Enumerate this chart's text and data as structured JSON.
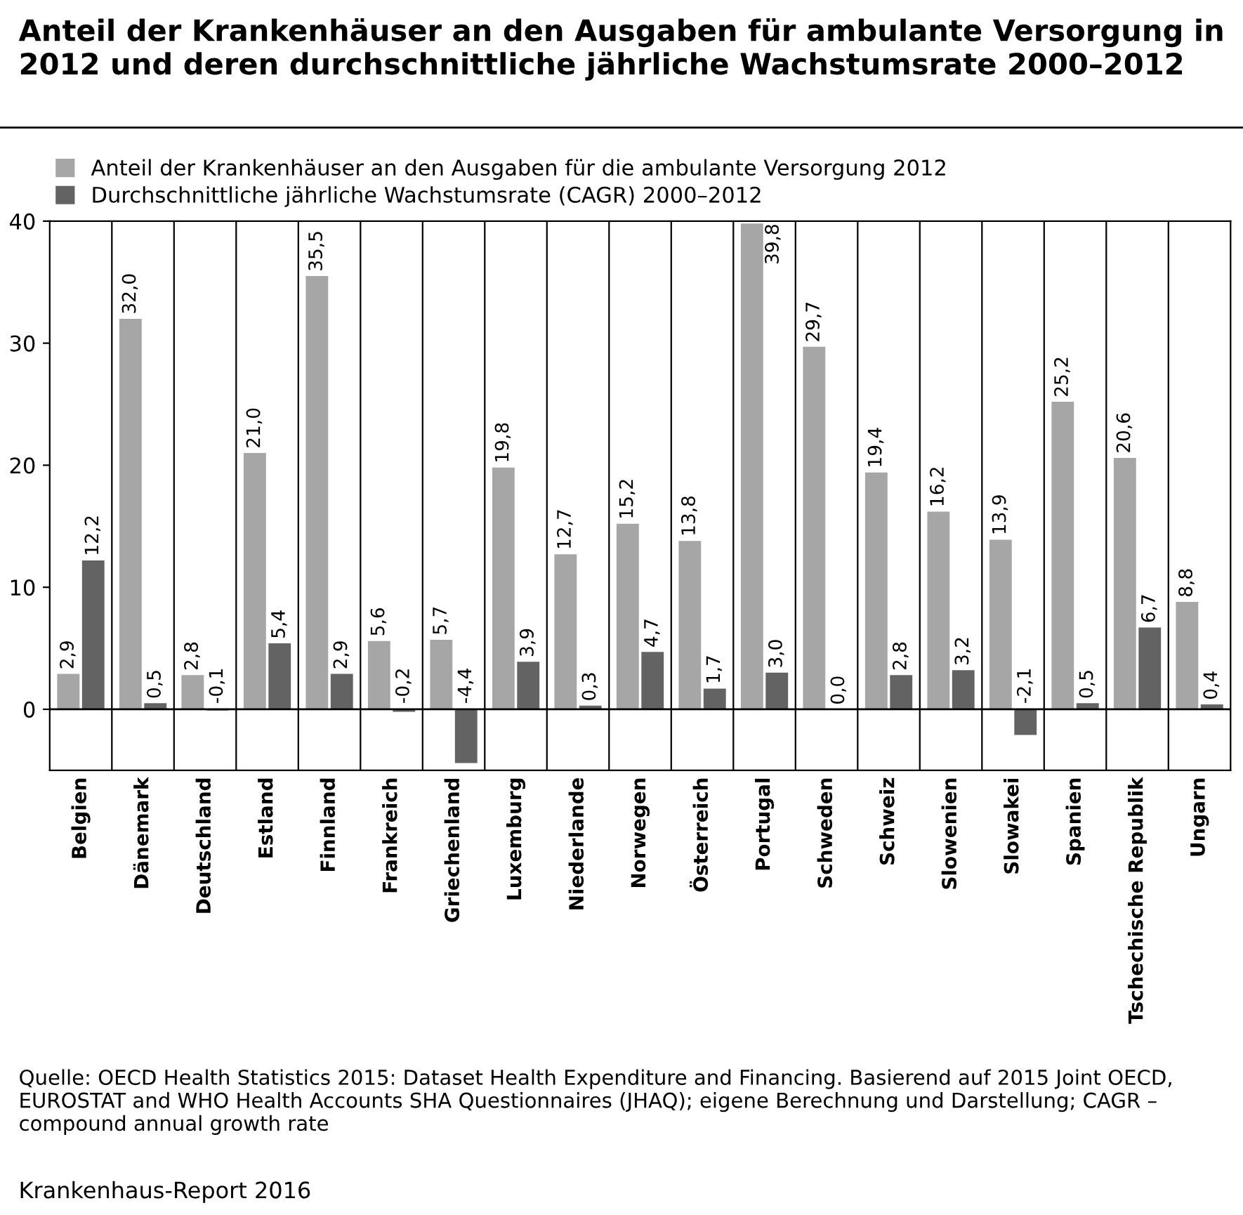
{
  "chart_data": {
    "type": "bar",
    "title": "Anteil der Krankenhäuser an den Ausgaben für ambulante Versorgung in 2012 und deren durchschnittliche jährliche Wachstumsrate 2000–2012",
    "categories": [
      "Belgien",
      "Dänemark",
      "Deutschland",
      "Estland",
      "Finnland",
      "Frankreich",
      "Griechenland",
      "Luxemburg",
      "Niederlande",
      "Norwegen",
      "Österreich",
      "Portugal",
      "Schweden",
      "Schweiz",
      "Slowenien",
      "Slowakei",
      "Spanien",
      "Tschechische Republik",
      "Ungarn"
    ],
    "series": [
      {
        "name": "Anteil der Krankenhäuser an den Ausgaben für die ambulante Versorgung 2012",
        "color": "#a6a6a6",
        "values": [
          2.9,
          32.0,
          2.8,
          21.0,
          35.5,
          5.6,
          5.7,
          19.8,
          12.7,
          15.2,
          13.8,
          39.8,
          29.7,
          19.4,
          16.2,
          13.9,
          25.2,
          20.6,
          8.8
        ],
        "value_labels": [
          "2,9",
          "32,0",
          "2,8",
          "21,0",
          "35,5",
          "5,6",
          "5,7",
          "19,8",
          "12,7",
          "15,2",
          "13,8",
          "39,8",
          "29,7",
          "19,4",
          "16,2",
          "13,9",
          "25,2",
          "20,6",
          "8,8"
        ]
      },
      {
        "name": "Durchschnittliche jährliche Wachstumsrate (CAGR) 2000–2012",
        "color": "#636363",
        "values": [
          12.2,
          0.5,
          -0.1,
          5.4,
          2.9,
          -0.2,
          -4.4,
          3.9,
          0.3,
          4.7,
          1.7,
          3.0,
          0.0,
          2.8,
          3.2,
          -2.1,
          0.5,
          6.7,
          0.4
        ],
        "value_labels": [
          "12,2",
          "0,5",
          "-0,1",
          "5,4",
          "2,9",
          "-0,2",
          "-4,4",
          "3,9",
          "0,3",
          "4,7",
          "1,7",
          "3,0",
          "0,0",
          "2,8",
          "3,2",
          "-2,1",
          "0,5",
          "6,7",
          "0,4"
        ]
      }
    ],
    "ylim": [
      -5,
      40
    ],
    "yticks": [
      0,
      10,
      20,
      30,
      40
    ],
    "grid": false,
    "legend": "top left",
    "annotations": [
      "Quelle: OECD Health Statistics 2015: Dataset Health Expenditure and Financing. Basierend auf 2015 Joint OECD, EUROSTAT and WHO Health Accounts SHA Questionnaires (JHAQ); eigene Berechnung und Darstellung; CAGR – compound annual growth rate",
      "Krankenhaus-Report 2016"
    ]
  }
}
